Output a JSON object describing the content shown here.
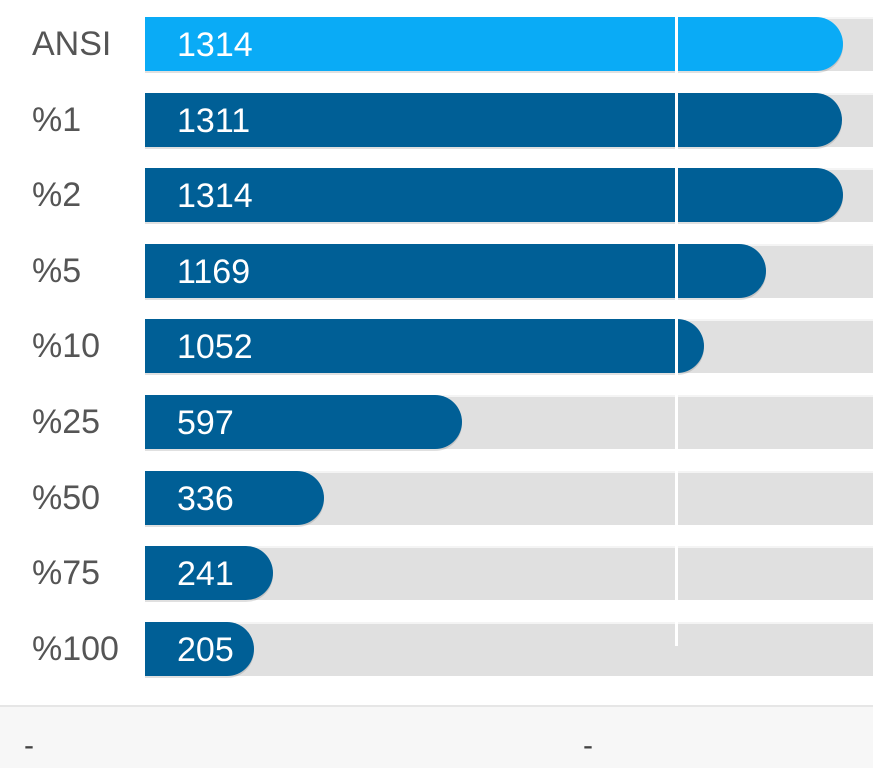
{
  "chart_data": {
    "type": "bar",
    "orientation": "horizontal",
    "categories": [
      "ANSI",
      "%1",
      "%2",
      "%5",
      "%10",
      "%25",
      "%50",
      "%75",
      "%100"
    ],
    "values": [
      1314,
      1311,
      1314,
      1169,
      1052,
      597,
      336,
      241,
      205
    ],
    "xlim": [
      0,
      1370
    ],
    "reference_line": 1000,
    "colors": {
      "highlight": "#0aabf6",
      "bar": "#005f96",
      "track": "#e0e0e0"
    },
    "highlight_index": 0,
    "grid": false,
    "legend": "none"
  },
  "footer": {
    "left": "-",
    "right": "-"
  }
}
